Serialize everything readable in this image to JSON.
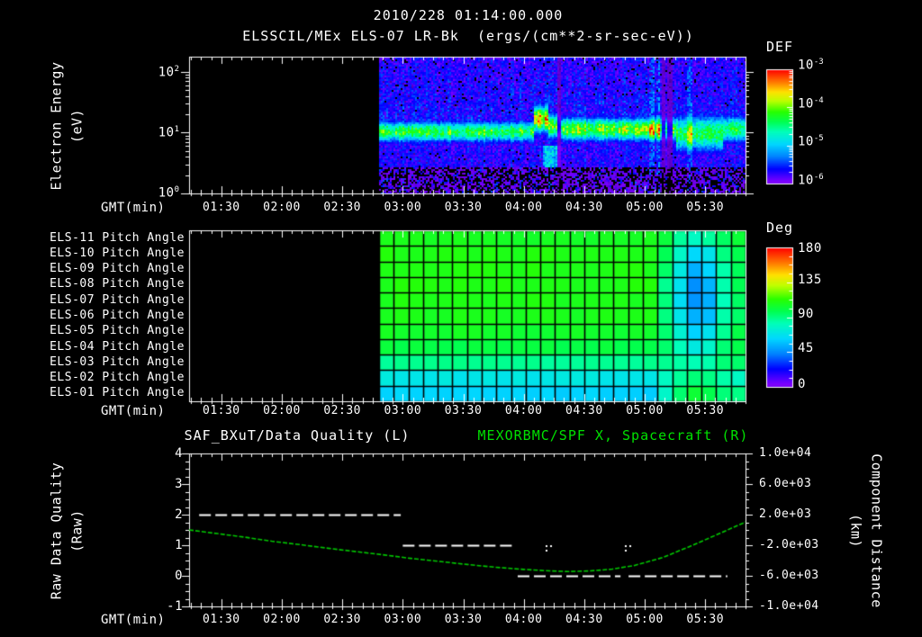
{
  "title": {
    "line1": "2010/228 01:14:00.000",
    "line2": "ELSSCIL/MEx ELS-07 LR-Bk  (ergs/(cm**2-sr-sec-eV))"
  },
  "colors": {
    "background": "#000000",
    "foreground": "#ffffff",
    "right_title_green": "#00e100",
    "spacecraft_series_green": "#00c800",
    "quality_series_white": "#ffffff"
  },
  "time_axis": {
    "label": "GMT(min)",
    "start_gmt": "01:14:00",
    "end_gmt": "05:50:00",
    "range_minutes_of_day": [
      74,
      350
    ],
    "tick_labels": [
      "01:30",
      "02:00",
      "02:30",
      "03:00",
      "03:30",
      "04:00",
      "04:30",
      "05:00",
      "05:30"
    ],
    "tick_minutes": [
      90,
      120,
      150,
      180,
      210,
      240,
      270,
      300,
      330
    ],
    "minor_tick_step_minutes": 5
  },
  "chart_data": [
    {
      "type": "heatmap",
      "name": "electron-energy-spectrogram",
      "ylabel_line1": "Electron Energy",
      "ylabel_line2": "(eV)",
      "xlabel": "GMT(min)",
      "yaxis": {
        "scale": "log",
        "range_ev": [
          1,
          178
        ],
        "ticks": [
          {
            "mant": "10",
            "exp": "2"
          },
          {
            "mant": "10",
            "exp": "1"
          },
          {
            "mant": "10",
            "exp": "0"
          }
        ]
      },
      "colorbar": {
        "title": "DEF",
        "units": "ergs/(cm**2-sr-sec-eV)",
        "scale": "log",
        "range": [
          1e-06,
          0.001
        ],
        "ticks": [
          {
            "mant": "10",
            "exp": "-3"
          },
          {
            "mant": "10",
            "exp": "-4"
          },
          {
            "mant": "10",
            "exp": "-5"
          },
          {
            "mant": "10",
            "exp": "-6"
          }
        ]
      },
      "data_start_gmt": "02:48",
      "features": [
        "no data (black) before 02:48",
        "bright cyan-green band ~4-22 eV centered near 10 eV for the whole data interval",
        "blue speckled low flux above the band up to ~178 eV",
        "dark background with sparse violet speckles below ~3 eV",
        "yellow intensification with band rising toward 15-25 eV near 04:05-04:12",
        "brighter green band from 04:12 to ~05:15",
        "broad cyan blob spanning ~3-40 eV near 05:20-05:45",
        "narrow dark vertical dropouts near 04:17 and 05:09-05:12"
      ],
      "band_model": {
        "comment": "segments: [t_start_min, t_end_min, center_log10_eV, sigma_log10_eV, peak_norm_intensity]",
        "segments": [
          [
            168,
            245,
            1.03,
            0.17,
            0.6
          ],
          [
            245,
            252,
            1.24,
            0.22,
            0.8
          ],
          [
            252,
            258,
            1.12,
            0.2,
            0.63
          ],
          [
            258,
            315,
            1.07,
            0.19,
            0.67
          ],
          [
            315,
            338,
            1.0,
            0.3,
            0.58
          ],
          [
            338,
            351,
            1.07,
            0.22,
            0.56
          ]
        ],
        "dark_stripe_minutes": [
          257,
          309,
          312
        ],
        "bright_stripe_minutes": [
          303,
          306,
          322
        ]
      }
    },
    {
      "type": "heatmap",
      "name": "pitch-angle-panels",
      "rows": [
        "ELS-11 Pitch Angle",
        "ELS-10 Pitch Angle",
        "ELS-09 Pitch Angle",
        "ELS-08 Pitch Angle",
        "ELS-07 Pitch Angle",
        "ELS-06 Pitch Angle",
        "ELS-05 Pitch Angle",
        "ELS-04 Pitch Angle",
        "ELS-03 Pitch Angle",
        "ELS-02 Pitch Angle",
        "ELS-01 Pitch Angle"
      ],
      "xlabel": "GMT(min)",
      "colorbar": {
        "title": "Deg",
        "range": [
          0,
          180
        ],
        "ticks": [
          180,
          135,
          90,
          45,
          0
        ]
      },
      "data_start_gmt": "02:48",
      "n_columns": 25,
      "column_span_gmt": [
        "02:48",
        "05:50"
      ],
      "values_deg": [
        [
          107,
          107,
          107,
          107,
          107,
          107,
          107,
          107,
          107,
          107,
          107,
          107,
          107,
          107,
          107,
          107,
          107,
          107,
          107,
          100,
          88,
          80,
          85,
          96,
          103
        ],
        [
          110,
          110,
          110,
          110,
          110,
          110,
          110,
          110,
          110,
          110,
          110,
          110,
          110,
          110,
          110,
          110,
          110,
          110,
          110,
          96,
          78,
          64,
          70,
          90,
          100
        ],
        [
          110,
          110,
          110,
          110,
          110,
          110,
          110,
          110,
          110,
          110,
          110,
          110,
          110,
          110,
          110,
          110,
          110,
          110,
          110,
          93,
          72,
          55,
          62,
          86,
          98
        ],
        [
          110,
          110,
          110,
          110,
          110,
          110,
          110,
          110,
          110,
          110,
          110,
          110,
          110,
          110,
          110,
          110,
          110,
          110,
          110,
          90,
          66,
          48,
          55,
          83,
          96
        ],
        [
          109,
          109,
          109,
          109,
          109,
          109,
          109,
          109,
          109,
          109,
          109,
          109,
          109,
          109,
          109,
          109,
          109,
          109,
          109,
          90,
          65,
          47,
          55,
          83,
          96
        ],
        [
          108,
          108,
          108,
          108,
          108,
          108,
          108,
          108,
          108,
          108,
          108,
          108,
          108,
          108,
          108,
          108,
          108,
          108,
          108,
          91,
          68,
          52,
          58,
          85,
          96
        ],
        [
          105,
          105,
          105,
          105,
          105,
          105,
          105,
          105,
          105,
          105,
          105,
          105,
          105,
          105,
          105,
          105,
          105,
          105,
          105,
          94,
          76,
          62,
          68,
          89,
          98
        ],
        [
          100,
          100,
          100,
          100,
          100,
          100,
          100,
          100,
          100,
          100,
          100,
          100,
          100,
          100,
          100,
          100,
          100,
          100,
          100,
          95,
          82,
          72,
          77,
          93,
          98
        ],
        [
          88,
          88,
          88,
          88,
          88,
          88,
          88,
          88,
          88,
          88,
          88,
          88,
          88,
          88,
          88,
          88,
          88,
          88,
          88,
          89,
          86,
          82,
          85,
          91,
          93
        ],
        [
          70,
          70,
          70,
          70,
          70,
          70,
          70,
          70,
          70,
          70,
          70,
          70,
          70,
          70,
          70,
          70,
          70,
          70,
          70,
          78,
          86,
          92,
          90,
          84,
          80
        ],
        [
          62,
          62,
          62,
          62,
          62,
          62,
          62,
          62,
          62,
          62,
          62,
          62,
          62,
          62,
          62,
          62,
          62,
          62,
          62,
          76,
          95,
          103,
          100,
          93,
          88
        ]
      ]
    },
    {
      "type": "line",
      "name": "data-quality-and-spacecraft-x",
      "title_left": "SAF_BXuT/Data Quality (L)",
      "title_right": "MEXORBMC/SPF X, Spacecraft (R)",
      "xlabel": "GMT(min)",
      "ylabel_left_line1": "Raw Data Quality",
      "ylabel_left_line2": "(Raw)",
      "ylabel_right_line1": "Component Distance",
      "ylabel_right_line2": "(km)",
      "yaxis_left": {
        "range": [
          -1,
          4
        ],
        "ticks": [
          "4",
          "3",
          "2",
          "1",
          "0",
          "-1"
        ]
      },
      "yaxis_right": {
        "range": [
          -10000,
          10000
        ],
        "ticks": [
          "1.0e+04",
          "6.0e+03",
          "2.0e+03",
          "-2.0e+03",
          "-6.0e+03",
          "-1.0e+04"
        ]
      },
      "series": [
        {
          "name": "SAF_BXuT/Data Quality",
          "axis": "left",
          "style": "dashed",
          "color": "#ffffff",
          "segments": [
            {
              "value": 2,
              "start_min": 79,
              "end_min": 179
            },
            {
              "value": 1,
              "start_min": 180,
              "end_min": 235
            },
            {
              "value": 0,
              "start_min": 237,
              "end_min": 288
            },
            {
              "value": 0,
              "start_min": 292,
              "end_min": 341
            }
          ],
          "isolated_points": [
            {
              "value": 0.9,
              "min": 251
            },
            {
              "value": 0.9,
              "min": 290
            }
          ]
        },
        {
          "name": "MEXORBMC/SPF X Spacecraft",
          "axis": "right",
          "style": "solid",
          "color": "#00c800",
          "t_min": [
            74,
            88,
            102,
            115,
            129,
            143,
            157,
            171,
            184,
            198,
            212,
            226,
            240,
            253,
            262,
            273,
            284,
            295,
            309,
            322,
            336,
            350
          ],
          "km": [
            0,
            -480,
            -960,
            -1480,
            -1920,
            -2400,
            -2840,
            -3280,
            -3720,
            -4120,
            -4520,
            -4880,
            -5160,
            -5360,
            -5440,
            -5360,
            -5120,
            -4640,
            -3600,
            -2200,
            -600,
            1040
          ]
        }
      ]
    }
  ]
}
